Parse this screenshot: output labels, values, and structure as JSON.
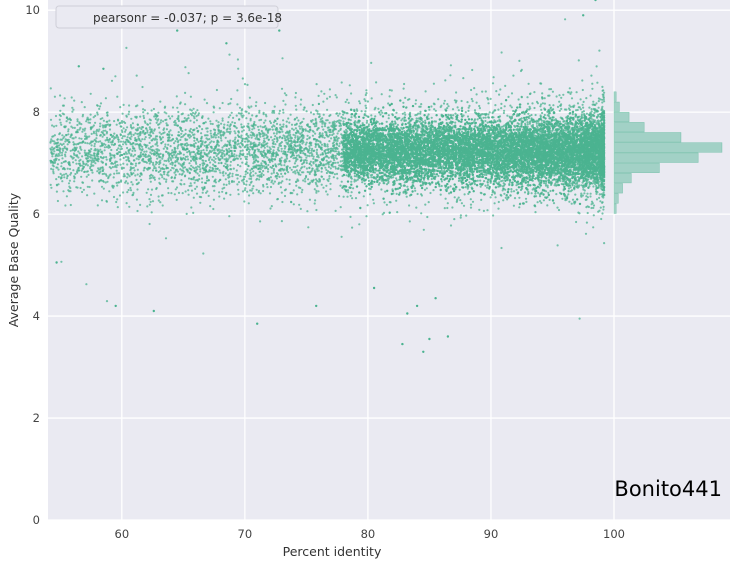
{
  "chart_data": {
    "type": "scatter",
    "title": "",
    "xlabel": "Percent identity",
    "ylabel": "Average Base Quality",
    "xlim": [
      54,
      100
    ],
    "ylim": [
      0,
      10.2
    ],
    "x_ticks": [
      60,
      70,
      80,
      90,
      100
    ],
    "y_ticks": [
      0,
      2,
      4,
      6,
      8,
      10
    ],
    "grid": true,
    "legend": {
      "text": "pearsonr = -0.037; p = 3.6e-18",
      "placement": "top-left"
    },
    "watermark": "Bonito441",
    "series": [
      {
        "color": "#4bb390",
        "points_description": "dense cloud of read-level points; bulk between y 6.2 and 8.2 centered near 7.25, density increasing toward x 85-99, sharp cut-off at x≈99",
        "outliers": [
          {
            "x": 59.5,
            "y": 4.2
          },
          {
            "x": 62.6,
            "y": 4.1
          },
          {
            "x": 54.7,
            "y": 5.05
          },
          {
            "x": 71.0,
            "y": 3.85
          },
          {
            "x": 82.8,
            "y": 3.45
          },
          {
            "x": 84.5,
            "y": 3.3
          },
          {
            "x": 85.0,
            "y": 3.55
          },
          {
            "x": 86.5,
            "y": 3.6
          },
          {
            "x": 83.2,
            "y": 4.05
          },
          {
            "x": 84.0,
            "y": 4.2
          },
          {
            "x": 85.5,
            "y": 4.35
          },
          {
            "x": 80.5,
            "y": 4.55
          },
          {
            "x": 75.8,
            "y": 4.2
          },
          {
            "x": 68.5,
            "y": 9.35
          },
          {
            "x": 72.8,
            "y": 9.6
          },
          {
            "x": 64.5,
            "y": 9.6
          },
          {
            "x": 56.5,
            "y": 8.9
          },
          {
            "x": 58.5,
            "y": 8.85
          },
          {
            "x": 97.5,
            "y": 9.9
          },
          {
            "x": 98.5,
            "y": 10.2
          }
        ]
      }
    ],
    "marginal_histogram": {
      "axis": "y",
      "bins": [
        {
          "y": 6.0,
          "count": 2
        },
        {
          "y": 6.2,
          "count": 4
        },
        {
          "y": 6.4,
          "count": 8
        },
        {
          "y": 6.6,
          "count": 16
        },
        {
          "y": 6.8,
          "count": 42
        },
        {
          "y": 7.0,
          "count": 78
        },
        {
          "y": 7.2,
          "count": 100
        },
        {
          "y": 7.4,
          "count": 62
        },
        {
          "y": 7.6,
          "count": 28
        },
        {
          "y": 7.8,
          "count": 14
        },
        {
          "y": 8.0,
          "count": 5
        },
        {
          "y": 8.2,
          "count": 2
        }
      ]
    }
  }
}
